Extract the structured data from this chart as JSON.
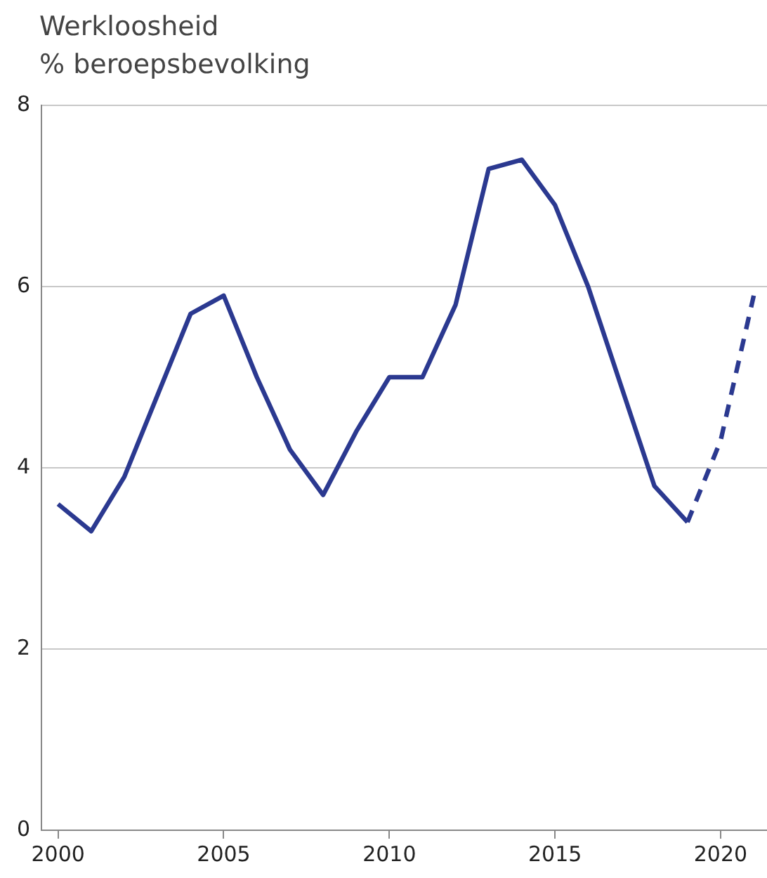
{
  "chart_data": {
    "type": "line",
    "title": "Werkloosheid",
    "subtitle": "% beroepsbevolking",
    "series": [
      {
        "color": "#2b3990",
        "line_style": "solid",
        "x": [
          2000,
          2001,
          2002,
          2003,
          2004,
          2005,
          2006,
          2007,
          2008,
          2009,
          2010,
          2011,
          2012,
          2013,
          2014,
          2015,
          2016,
          2017,
          2018,
          2019
        ],
        "values": [
          3.6,
          3.3,
          3.9,
          4.8,
          5.7,
          5.9,
          5.0,
          4.2,
          3.7,
          4.4,
          5.0,
          5.0,
          5.8,
          7.3,
          7.4,
          6.9,
          6.0,
          4.9,
          3.8,
          3.4
        ]
      },
      {
        "color": "#2b3990",
        "line_style": "dashed",
        "x": [
          2019,
          2020,
          2021
        ],
        "values": [
          3.4,
          4.3,
          5.9
        ]
      }
    ],
    "xlim": [
      1999.5,
      2021.4
    ],
    "xticks": [
      2000,
      2005,
      2010,
      2015,
      2020
    ],
    "ylim": [
      0,
      8
    ],
    "yticks": [
      0,
      2,
      4,
      6,
      8
    ],
    "grid": "y",
    "legend": false,
    "marker": "none"
  }
}
